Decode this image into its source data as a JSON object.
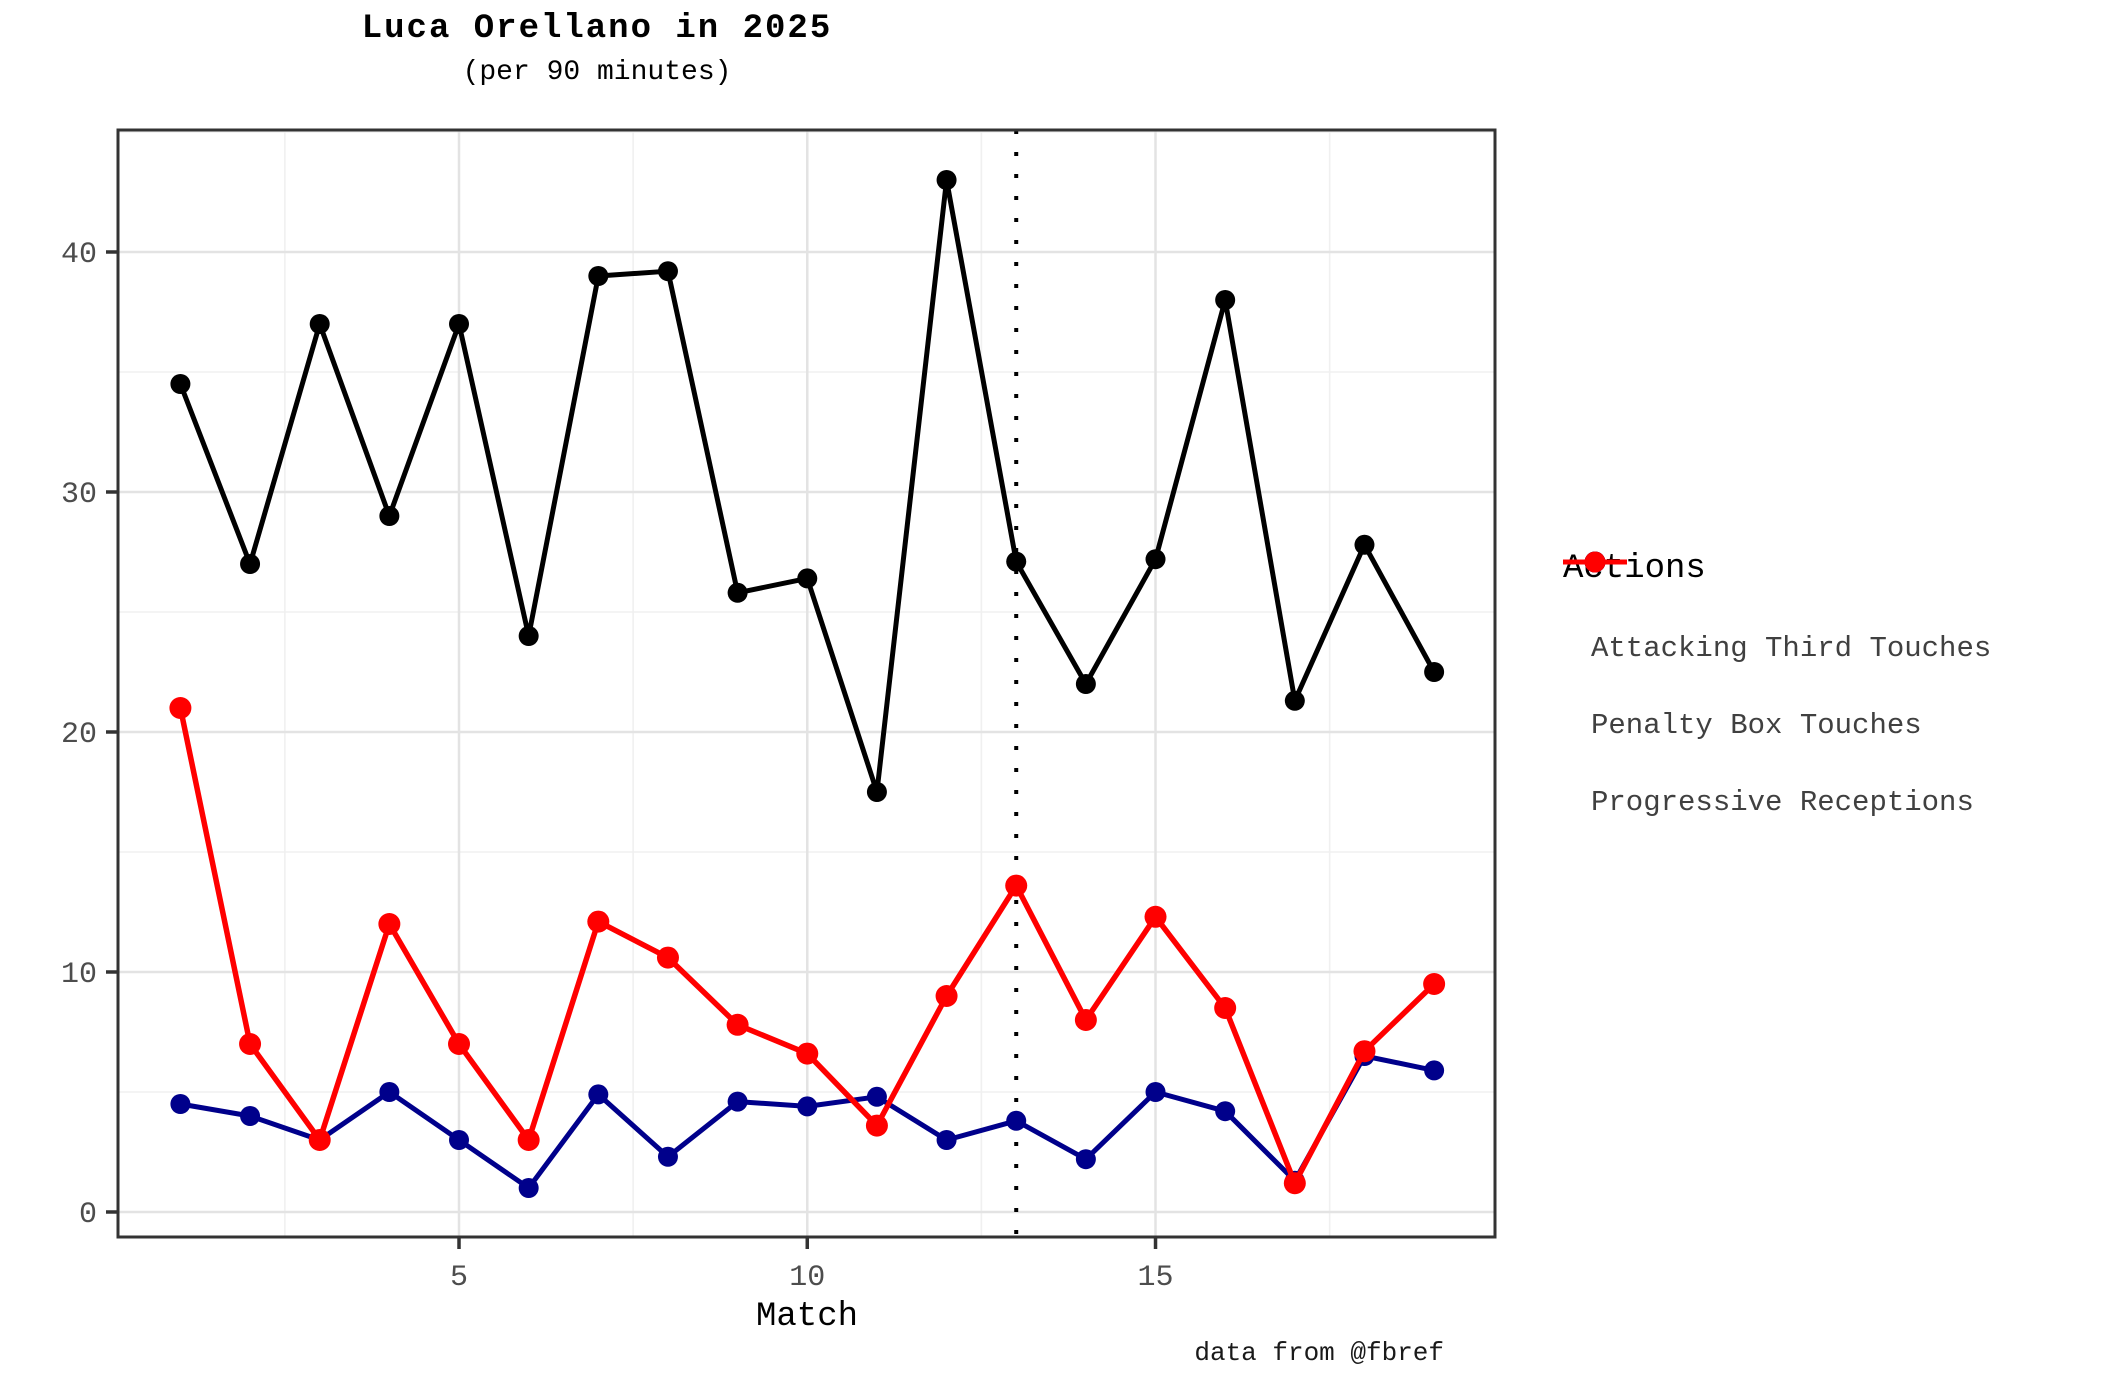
{
  "title": "Luca Orellano in 2025",
  "subtitle": "(per 90 minutes)",
  "caption": "data from @fbref",
  "x_axis_title": "Match",
  "legend": {
    "title": "Actions",
    "items": [
      {
        "label": "Attacking Third Touches",
        "color": "#000000"
      },
      {
        "label": "Penalty Box Touches",
        "color": "#00008B"
      },
      {
        "label": "Progressive Receptions",
        "color": "#FF0000"
      }
    ]
  },
  "colors": {
    "panel_border": "#333333",
    "tick_mark": "#333333",
    "tick_label": "#4d4d4d",
    "grid_major": "#e3e3e3",
    "grid_minor": "#f0f0f0",
    "vline": "#000000",
    "background": "#ffffff"
  },
  "chart_data": {
    "type": "line",
    "title": "Luca Orellano in 2025",
    "subtitle": "(per 90 minutes)",
    "xlabel": "Match",
    "ylabel": "",
    "x": [
      1,
      2,
      3,
      4,
      5,
      6,
      7,
      8,
      9,
      10,
      11,
      12,
      13,
      14,
      15,
      16,
      17,
      18,
      19
    ],
    "series": [
      {
        "name": "Attacking Third Touches",
        "color": "#000000",
        "line_width": 5,
        "point_radius": 10,
        "values": [
          34.5,
          27,
          37,
          29,
          37,
          24,
          39,
          39.2,
          25.8,
          26.4,
          17.5,
          43,
          27.1,
          22,
          27.2,
          38,
          21.3,
          27.8,
          22.5
        ]
      },
      {
        "name": "Penalty Box Touches",
        "color": "#00008B",
        "line_width": 5,
        "point_radius": 10,
        "values": [
          4.5,
          4,
          3,
          5,
          3,
          1,
          4.9,
          2.3,
          4.6,
          4.4,
          4.8,
          3,
          3.8,
          2.2,
          5,
          4.2,
          1.3,
          6.5,
          5.9
        ]
      },
      {
        "name": "Progressive Receptions",
        "color": "#FF0000",
        "line_width": 5.5,
        "point_radius": 11,
        "values": [
          21,
          7,
          3,
          12,
          7,
          3,
          12.1,
          10.6,
          7.8,
          6.6,
          3.6,
          9,
          13.6,
          8,
          12.3,
          8.5,
          1.2,
          6.7,
          9.5
        ]
      }
    ],
    "x_ticks": [
      5,
      10,
      15
    ],
    "y_ticks": [
      0,
      10,
      20,
      30,
      40
    ],
    "xlim": [
      0.104,
      19.874
    ],
    "ylim": [
      -1.042,
      45.083
    ],
    "grid": true,
    "legend_position": "right",
    "annotations": {
      "vline_x": 13,
      "vline_style": "dotted"
    }
  }
}
